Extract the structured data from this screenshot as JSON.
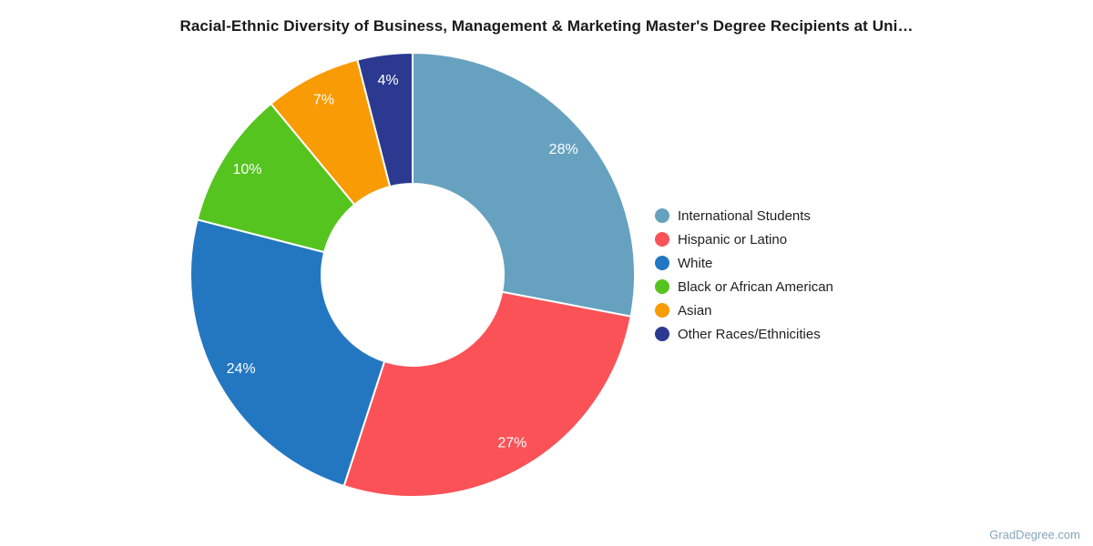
{
  "page": {
    "title": "Racial-Ethnic Diversity of Business, Management & Marketing Master's Degree Recipients at Uni…",
    "watermark": "GradDegree.com"
  },
  "chart_data": {
    "type": "pie",
    "title": "Racial-Ethnic Diversity of Business, Management & Marketing Master's Degree Recipients at Uni…",
    "donut": true,
    "hole_ratio": 0.41,
    "start_angle_deg": 0,
    "direction": "clockwise",
    "legend_position": "right",
    "categories": [
      "International Students",
      "Hispanic or Latino",
      "White",
      "Black or African American",
      "Asian",
      "Other Races/Ethnicities"
    ],
    "values": [
      28,
      27,
      24,
      10,
      7,
      4
    ],
    "labels": [
      "28%",
      "27%",
      "24%",
      "10%",
      "7%",
      "4%"
    ],
    "colors": [
      "#66a2c0",
      "#fb5257",
      "#2377c1",
      "#55c41f",
      "#f89b05",
      "#2b3a90"
    ],
    "label_color": "#ffffff",
    "background": "#ffffff"
  }
}
